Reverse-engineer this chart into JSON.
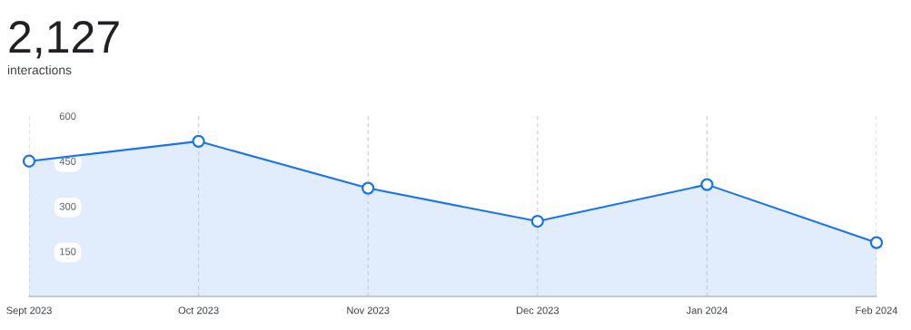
{
  "chart_data": {
    "type": "area",
    "title": "2,127",
    "subtitle": "interactions",
    "categories": [
      "Sept 2023",
      "Oct 2023",
      "Nov 2023",
      "Dec 2023",
      "Jan 2024",
      "Feb 2024"
    ],
    "series": [
      {
        "color": "#1a73e8",
        "values": [
          450,
          516,
          360,
          250,
          372,
          179
        ]
      }
    ],
    "ylim": [
      0,
      600
    ],
    "yticks": [
      {
        "value": 150,
        "label": "150"
      },
      {
        "value": 300,
        "label": "300"
      },
      {
        "value": 450,
        "label": "450"
      },
      {
        "value": 600,
        "label": "600"
      }
    ],
    "grid": "x",
    "marker": "circle",
    "line_style": "solid"
  }
}
